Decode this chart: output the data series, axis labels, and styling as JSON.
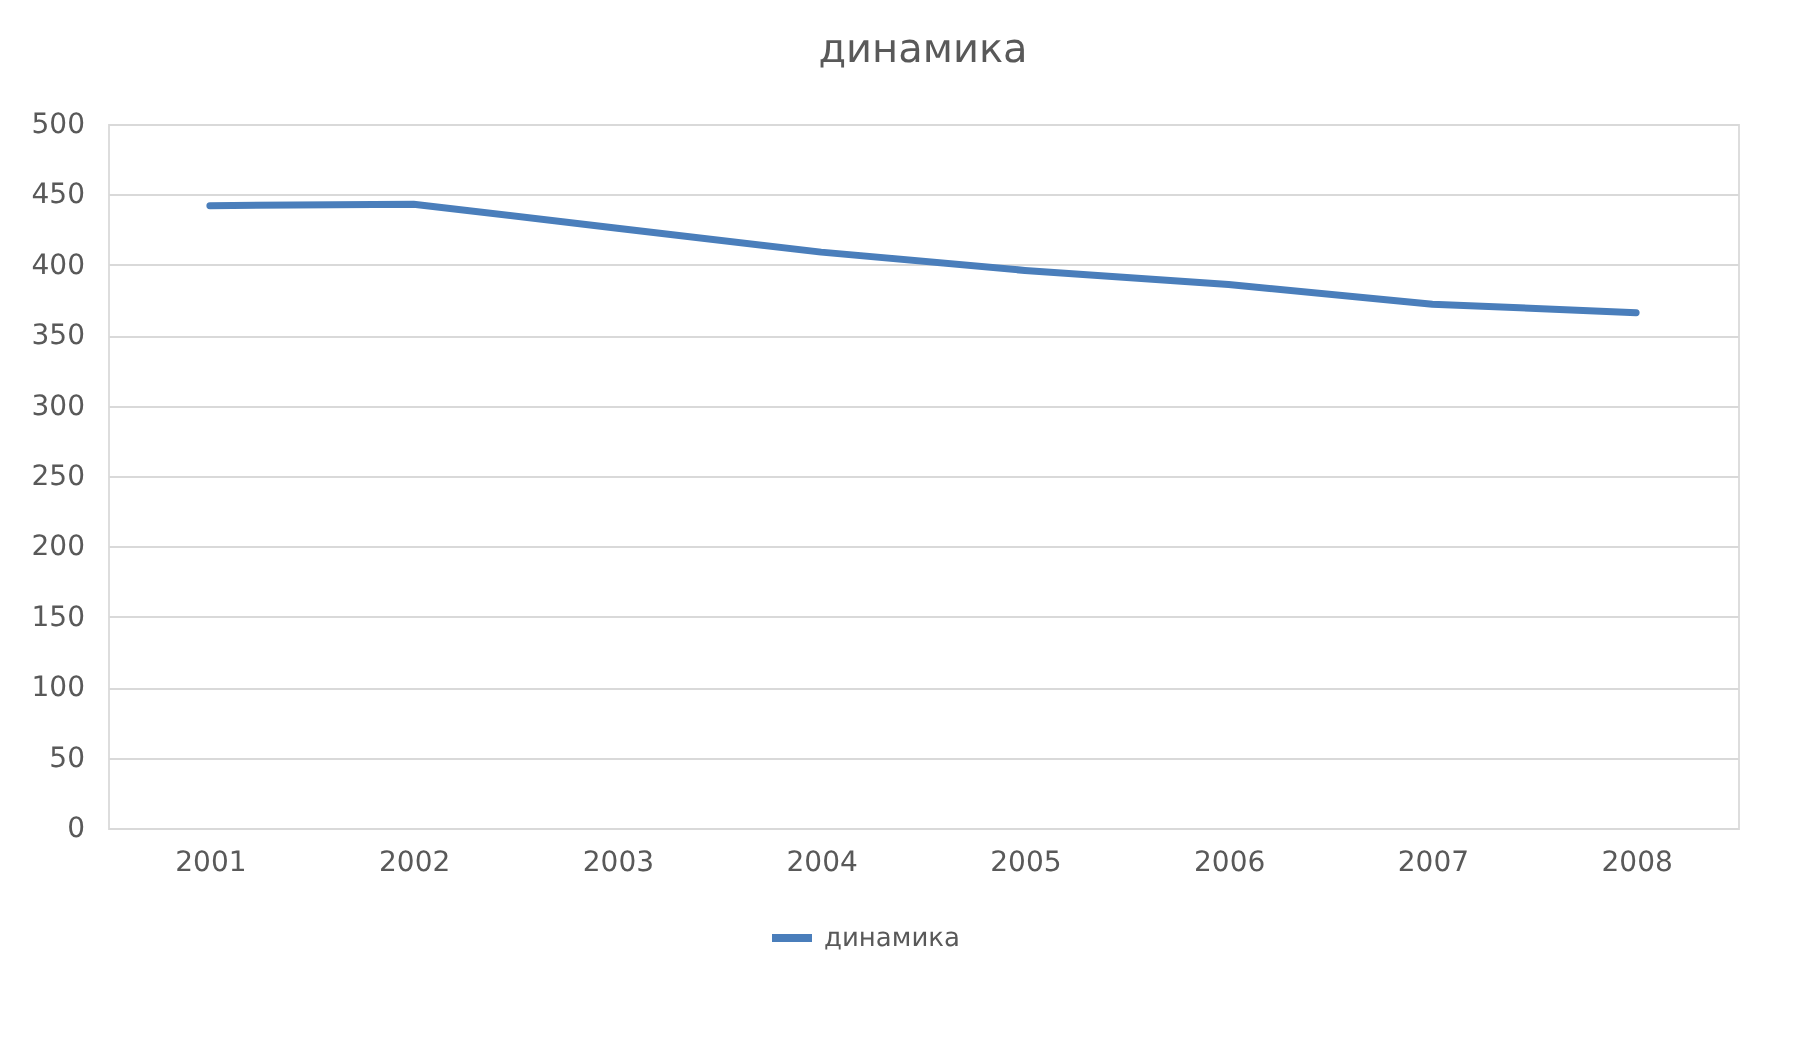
{
  "chart_data": {
    "type": "line",
    "title": "динамика",
    "categories": [
      "2001",
      "2002",
      "2003",
      "2004",
      "2005",
      "2006",
      "2007",
      "2008"
    ],
    "series": [
      {
        "name": "динамика",
        "color": "#4a7ebb",
        "values": [
          442,
          443,
          426,
          409,
          396,
          386,
          372,
          366
        ]
      }
    ],
    "ylim": [
      0,
      500
    ],
    "yticks": [
      0,
      50,
      100,
      150,
      200,
      250,
      300,
      350,
      400,
      450,
      500
    ],
    "grid": "y",
    "legend": "bottom",
    "marker": "none",
    "line_style": "solid"
  }
}
